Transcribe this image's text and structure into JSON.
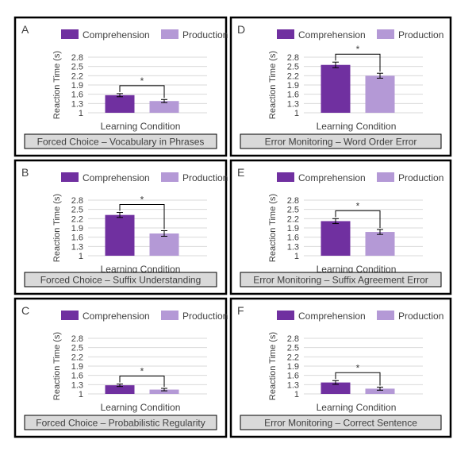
{
  "legend": {
    "comprehension": "Comprehension",
    "production": "Production"
  },
  "colors": {
    "comprehension": "#7030a0",
    "production": "#b499d6",
    "caption_bg": "#d9d9d9",
    "grid": "#d9d9d9",
    "border": "#000000"
  },
  "yaxis_label": "Reaction Time (s)",
  "xaxis_label": "Learning Condition",
  "chart_data": [
    {
      "type": "bar",
      "panel": "A",
      "caption": "Forced Choice – Vocabulary in Phrases",
      "categories": [
        "Comprehension",
        "Production"
      ],
      "values": [
        1.57,
        1.38
      ],
      "errors": [
        0.05,
        0.05
      ],
      "ylim": [
        1,
        2.8
      ],
      "yticks": [
        "1",
        "1.3",
        "1.6",
        "1.9",
        "2.2",
        "2.5",
        "2.8"
      ],
      "significance": "*",
      "grid": true,
      "legend_position": "top"
    },
    {
      "type": "bar",
      "panel": "B",
      "caption": "Forced Choice – Suffix Understanding",
      "categories": [
        "Comprehension",
        "Production"
      ],
      "values": [
        2.32,
        1.72
      ],
      "errors": [
        0.08,
        0.09
      ],
      "ylim": [
        1,
        2.8
      ],
      "yticks": [
        "1",
        "1.3",
        "1.6",
        "1.9",
        "2.2",
        "2.5",
        "2.8"
      ],
      "significance": "*",
      "grid": true,
      "legend_position": "top"
    },
    {
      "type": "bar",
      "panel": "C",
      "caption": "Forced Choice – Probabilistic Regularity",
      "categories": [
        "Comprehension",
        "Production"
      ],
      "values": [
        1.28,
        1.14
      ],
      "errors": [
        0.04,
        0.04
      ],
      "ylim": [
        1,
        2.8
      ],
      "yticks": [
        "1",
        "1.3",
        "1.6",
        "1.9",
        "2.2",
        "2.5",
        "2.8"
      ],
      "significance": "*",
      "grid": true,
      "legend_position": "top"
    },
    {
      "type": "bar",
      "panel": "D",
      "caption": "Error Monitoring – Word Order Error",
      "categories": [
        "Comprehension",
        "Production"
      ],
      "values": [
        2.55,
        2.2
      ],
      "errors": [
        0.09,
        0.08
      ],
      "ylim": [
        1,
        2.8
      ],
      "yticks": [
        "1",
        "1.3",
        "1.6",
        "1.9",
        "2.2",
        "2.5",
        "2.8"
      ],
      "significance": "*",
      "grid": true,
      "legend_position": "top"
    },
    {
      "type": "bar",
      "panel": "E",
      "caption": "Error Monitoring – Suffix Agreement Error",
      "categories": [
        "Comprehension",
        "Production"
      ],
      "values": [
        2.12,
        1.77
      ],
      "errors": [
        0.08,
        0.08
      ],
      "ylim": [
        1,
        2.8
      ],
      "yticks": [
        "1",
        "1.3",
        "1.6",
        "1.9",
        "2.2",
        "2.5",
        "2.8"
      ],
      "significance": "*",
      "grid": true,
      "legend_position": "top"
    },
    {
      "type": "bar",
      "panel": "F",
      "caption": "Error Monitoring – Correct Sentence",
      "categories": [
        "Comprehension",
        "Production"
      ],
      "values": [
        1.37,
        1.17
      ],
      "errors": [
        0.06,
        0.05
      ],
      "ylim": [
        1,
        2.8
      ],
      "yticks": [
        "1",
        "1.3",
        "1.6",
        "1.9",
        "2.2",
        "2.5",
        "2.8"
      ],
      "significance": "*",
      "grid": true,
      "legend_position": "top"
    }
  ]
}
